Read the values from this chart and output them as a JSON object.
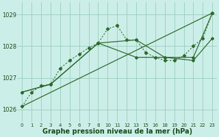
{
  "bg_color": "#cceee8",
  "grid_color": "#99ccbb",
  "line_color": "#2d6a2d",
  "xlabel": "Graphe pression niveau de la mer (hPa)",
  "xlabel_color": "#1a4a1a",
  "xlabel_fontsize": 7,
  "ylim": [
    1025.6,
    1029.4
  ],
  "yticks": [
    1026,
    1027,
    1028,
    1029
  ],
  "xtick_labels": [
    "0",
    "1",
    "2",
    "3",
    "4",
    "5",
    "6",
    "7",
    "8",
    "10",
    "11",
    "12",
    "13",
    "15",
    "16",
    "18",
    "19",
    "20",
    "21",
    "22",
    "23"
  ],
  "series_dotted_y": [
    1026.1,
    1026.55,
    1026.75,
    1026.8,
    1027.3,
    1027.55,
    1027.75,
    1027.95,
    1028.1,
    1028.55,
    1028.65,
    1028.2,
    1028.2,
    1027.8,
    1027.65,
    1027.55,
    1027.55,
    1027.7,
    1028.0,
    1028.25,
    1029.05
  ],
  "series_line1_idx": [
    0,
    20
  ],
  "series_line1_y": [
    1026.1,
    1029.05
  ],
  "series_line2_idx": [
    0,
    3,
    8,
    12,
    15,
    18,
    20
  ],
  "series_line2_y": [
    1026.55,
    1026.8,
    1028.1,
    1028.2,
    1027.65,
    1027.55,
    1028.25
  ],
  "series_line3_idx": [
    0,
    3,
    8,
    12,
    15,
    18,
    20
  ],
  "series_line3_y": [
    1026.55,
    1026.8,
    1028.1,
    1027.65,
    1027.65,
    1027.65,
    1029.05
  ]
}
